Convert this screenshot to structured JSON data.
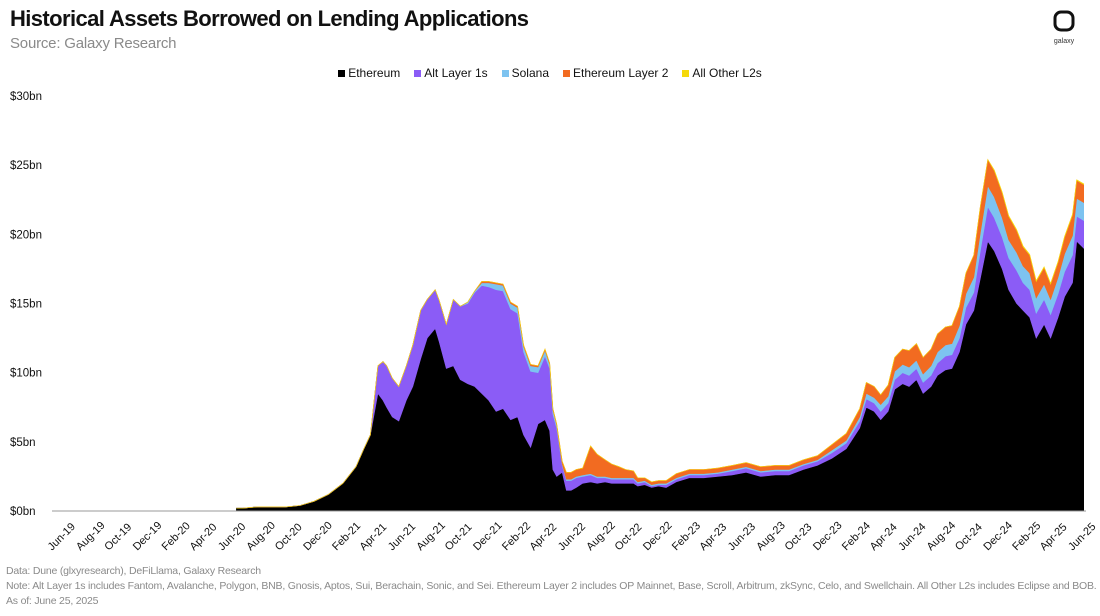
{
  "header": {
    "title": "Historical Assets Borrowed on Lending Applications",
    "subtitle": "Source: Galaxy Research",
    "logo_text": "galaxy"
  },
  "footer": {
    "data_line": "Data: Dune (glxyresearch), DeFiLlama, Galaxy Research",
    "note_line": "Note: Alt Layer 1s includes Fantom, Avalanche, Polygon, BNB, Gnosis, Aptos, Sui, Berachain, Sonic, and Sei. Ethereum Layer 2 includes OP Mainnet, Base, Scroll, Arbitrum, zkSync, Celo, and Swellchain. All Other L2s includes Eclipse and BOB.",
    "asof_line": "As of: June 25, 2025"
  },
  "chart_data": {
    "type": "area",
    "stacked": true,
    "legend_position": "top-center",
    "grid": false,
    "ylim": [
      0,
      30
    ],
    "y_ticks": [
      "$0bn",
      "$5bn",
      "$10bn",
      "$15bn",
      "$20bn",
      "$25bn",
      "$30bn"
    ],
    "x_ticks": [
      "Jun-19",
      "Aug-19",
      "Oct-19",
      "Dec-19",
      "Feb-20",
      "Apr-20",
      "Jun-20",
      "Aug-20",
      "Oct-20",
      "Dec-20",
      "Feb-21",
      "Apr-21",
      "Jun-21",
      "Aug-21",
      "Oct-21",
      "Dec-21",
      "Feb-22",
      "Apr-22",
      "Jun-22",
      "Aug-22",
      "Oct-22",
      "Dec-22",
      "Feb-23",
      "Apr-23",
      "Jun-23",
      "Aug-23",
      "Oct-23",
      "Dec-23",
      "Feb-24",
      "Apr-24",
      "Jun-24",
      "Aug-24",
      "Oct-24",
      "Dec-24",
      "Feb-25",
      "Apr-25",
      "Jun-25"
    ],
    "x_range": [
      "2019-06-01",
      "2025-06-30"
    ],
    "x": [
      "2020-07-01",
      "2020-07-15",
      "2020-08-15",
      "2020-09-15",
      "2020-10-15",
      "2020-11-15",
      "2020-12-15",
      "2021-01-15",
      "2021-02-15",
      "2021-03-15",
      "2021-04-01",
      "2021-04-15",
      "2021-05-01",
      "2021-05-12",
      "2021-05-20",
      "2021-06-01",
      "2021-06-15",
      "2021-07-01",
      "2021-07-15",
      "2021-08-01",
      "2021-08-15",
      "2021-09-01",
      "2021-09-10",
      "2021-09-25",
      "2021-10-10",
      "2021-10-25",
      "2021-11-10",
      "2021-11-25",
      "2021-12-10",
      "2021-12-25",
      "2022-01-10",
      "2022-01-25",
      "2022-02-10",
      "2022-02-25",
      "2022-03-10",
      "2022-03-25",
      "2022-04-10",
      "2022-04-25",
      "2022-05-05",
      "2022-05-12",
      "2022-05-20",
      "2022-06-01",
      "2022-06-10",
      "2022-06-20",
      "2022-07-01",
      "2022-07-15",
      "2022-08-01",
      "2022-08-15",
      "2022-09-01",
      "2022-09-15",
      "2022-10-01",
      "2022-10-15",
      "2022-11-01",
      "2022-11-10",
      "2022-11-25",
      "2022-12-10",
      "2022-12-25",
      "2023-01-10",
      "2023-02-01",
      "2023-03-01",
      "2023-04-01",
      "2023-05-01",
      "2023-06-01",
      "2023-07-01",
      "2023-08-01",
      "2023-09-01",
      "2023-10-01",
      "2023-11-01",
      "2023-12-01",
      "2024-01-01",
      "2024-02-01",
      "2024-03-01",
      "2024-03-15",
      "2024-04-01",
      "2024-04-15",
      "2024-05-01",
      "2024-05-15",
      "2024-06-01",
      "2024-06-15",
      "2024-07-01",
      "2024-07-15",
      "2024-08-01",
      "2024-08-15",
      "2024-09-01",
      "2024-09-15",
      "2024-10-01",
      "2024-10-15",
      "2024-11-01",
      "2024-11-15",
      "2024-12-01",
      "2024-12-15",
      "2025-01-01",
      "2025-01-15",
      "2025-02-01",
      "2025-02-15",
      "2025-03-01",
      "2025-03-15",
      "2025-04-01",
      "2025-04-15",
      "2025-05-01",
      "2025-05-15",
      "2025-06-01",
      "2025-06-10",
      "2025-06-25"
    ],
    "series": [
      {
        "name": "Ethereum",
        "color": "#000000",
        "values": [
          0.2,
          0.2,
          0.3,
          0.3,
          0.3,
          0.4,
          0.7,
          1.2,
          2.0,
          3.2,
          4.5,
          5.5,
          8.5,
          8.0,
          7.5,
          6.8,
          6.5,
          8.0,
          9.0,
          11.0,
          12.5,
          13.2,
          12.2,
          10.3,
          10.5,
          9.5,
          9.2,
          9.0,
          8.5,
          8.0,
          7.2,
          7.4,
          6.6,
          6.8,
          5.5,
          4.6,
          6.3,
          6.6,
          5.8,
          3.0,
          2.5,
          2.8,
          1.5,
          1.5,
          1.7,
          2.0,
          2.1,
          2.0,
          2.1,
          2.0,
          2.0,
          2.0,
          2.0,
          1.8,
          1.9,
          1.7,
          1.8,
          1.7,
          2.1,
          2.4,
          2.4,
          2.5,
          2.6,
          2.8,
          2.5,
          2.6,
          2.6,
          3.0,
          3.3,
          3.8,
          4.5,
          6.0,
          7.5,
          7.2,
          6.6,
          7.2,
          8.8,
          9.2,
          9.0,
          9.5,
          8.5,
          9.0,
          9.8,
          10.2,
          10.3,
          11.5,
          13.5,
          14.5,
          16.8,
          19.5,
          18.8,
          17.5,
          16.0,
          15.0,
          14.5,
          14.0,
          12.5,
          13.5,
          12.5,
          14.0,
          15.5,
          16.5,
          19.5,
          19.0
        ]
      },
      {
        "name": "Alt Layer 1s",
        "color": "#8b5cf6",
        "values": [
          0.0,
          0.0,
          0.0,
          0.0,
          0.0,
          0.0,
          0.0,
          0.0,
          0.0,
          0.0,
          0.0,
          0.0,
          2.0,
          2.8,
          3.0,
          2.8,
          2.5,
          2.5,
          3.0,
          3.5,
          2.8,
          2.8,
          3.0,
          3.2,
          4.8,
          5.3,
          5.8,
          6.8,
          7.8,
          8.2,
          8.8,
          8.5,
          8.0,
          7.5,
          6.0,
          5.5,
          3.7,
          4.6,
          4.5,
          4.0,
          3.5,
          0.5,
          0.7,
          0.7,
          0.7,
          0.5,
          0.5,
          0.4,
          0.3,
          0.3,
          0.3,
          0.3,
          0.3,
          0.2,
          0.2,
          0.1,
          0.1,
          0.2,
          0.2,
          0.2,
          0.2,
          0.2,
          0.3,
          0.3,
          0.3,
          0.3,
          0.3,
          0.3,
          0.3,
          0.4,
          0.4,
          0.5,
          0.6,
          0.6,
          0.6,
          0.6,
          0.7,
          0.8,
          0.8,
          0.8,
          0.8,
          0.8,
          0.9,
          1.0,
          1.0,
          1.0,
          1.2,
          1.3,
          2.0,
          2.5,
          2.4,
          2.3,
          2.3,
          2.4,
          2.0,
          2.0,
          1.8,
          1.8,
          1.7,
          1.7,
          1.8,
          2.0,
          1.8,
          2.0
        ]
      },
      {
        "name": "Solana",
        "color": "#7dc3f0",
        "values": [
          0.0,
          0.0,
          0.0,
          0.0,
          0.0,
          0.0,
          0.0,
          0.0,
          0.0,
          0.0,
          0.0,
          0.0,
          0.0,
          0.0,
          0.0,
          0.0,
          0.0,
          0.0,
          0.0,
          0.0,
          0.0,
          0.0,
          0.0,
          0.0,
          0.0,
          0.0,
          0.1,
          0.1,
          0.2,
          0.3,
          0.4,
          0.4,
          0.4,
          0.4,
          0.4,
          0.4,
          0.4,
          0.4,
          0.3,
          0.3,
          0.2,
          0.1,
          0.1,
          0.1,
          0.1,
          0.1,
          0.1,
          0.1,
          0.1,
          0.1,
          0.1,
          0.1,
          0.1,
          0.1,
          0.1,
          0.1,
          0.1,
          0.1,
          0.1,
          0.1,
          0.1,
          0.1,
          0.1,
          0.1,
          0.1,
          0.1,
          0.1,
          0.1,
          0.1,
          0.2,
          0.2,
          0.3,
          0.4,
          0.4,
          0.5,
          0.5,
          0.6,
          0.6,
          0.6,
          0.6,
          0.6,
          0.7,
          0.8,
          0.8,
          0.8,
          0.9,
          1.0,
          1.1,
          1.3,
          1.5,
          1.5,
          1.4,
          1.3,
          1.3,
          1.2,
          1.2,
          1.1,
          1.1,
          1.1,
          1.2,
          1.3,
          1.4,
          1.3,
          1.3
        ]
      },
      {
        "name": "Ethereum Layer 2",
        "color": "#f26b21",
        "values": [
          0.0,
          0.0,
          0.0,
          0.0,
          0.0,
          0.0,
          0.0,
          0.0,
          0.0,
          0.0,
          0.0,
          0.0,
          0.0,
          0.0,
          0.0,
          0.0,
          0.0,
          0.0,
          0.0,
          0.0,
          0.0,
          0.0,
          0.0,
          0.0,
          0.0,
          0.0,
          0.0,
          0.0,
          0.1,
          0.1,
          0.1,
          0.1,
          0.1,
          0.1,
          0.1,
          0.1,
          0.1,
          0.1,
          0.1,
          0.1,
          0.1,
          0.2,
          0.5,
          0.5,
          0.5,
          0.5,
          2.0,
          1.6,
          1.2,
          1.0,
          0.8,
          0.6,
          0.5,
          0.3,
          0.2,
          0.2,
          0.2,
          0.2,
          0.3,
          0.3,
          0.3,
          0.3,
          0.3,
          0.3,
          0.3,
          0.3,
          0.3,
          0.3,
          0.3,
          0.4,
          0.5,
          0.6,
          0.8,
          0.8,
          0.7,
          0.8,
          1.0,
          1.1,
          1.2,
          1.2,
          1.2,
          1.2,
          1.3,
          1.3,
          1.3,
          1.4,
          1.5,
          1.6,
          1.9,
          1.9,
          1.9,
          1.8,
          1.7,
          1.6,
          1.4,
          1.3,
          1.2,
          1.2,
          1.1,
          1.1,
          1.2,
          1.5,
          1.3,
          1.3
        ]
      },
      {
        "name": "All Other L2s",
        "color": "#f5d90a",
        "values": [
          0.0,
          0.0,
          0.0,
          0.0,
          0.0,
          0.0,
          0.0,
          0.0,
          0.0,
          0.0,
          0.0,
          0.0,
          0.0,
          0.0,
          0.0,
          0.0,
          0.0,
          0.0,
          0.0,
          0.0,
          0.0,
          0.0,
          0.0,
          0.0,
          0.0,
          0.0,
          0.0,
          0.0,
          0.0,
          0.0,
          0.0,
          0.0,
          0.0,
          0.0,
          0.0,
          0.0,
          0.0,
          0.0,
          0.0,
          0.0,
          0.0,
          0.0,
          0.0,
          0.0,
          0.0,
          0.0,
          0.0,
          0.0,
          0.0,
          0.0,
          0.0,
          0.0,
          0.0,
          0.0,
          0.0,
          0.0,
          0.0,
          0.0,
          0.0,
          0.0,
          0.0,
          0.0,
          0.0,
          0.0,
          0.0,
          0.0,
          0.0,
          0.0,
          0.0,
          0.0,
          0.0,
          0.0,
          0.0,
          0.0,
          0.0,
          0.0,
          0.0,
          0.0,
          0.0,
          0.0,
          0.0,
          0.0,
          0.0,
          0.0,
          0.0,
          0.0,
          0.0,
          0.0,
          0.0,
          0.0,
          0.05,
          0.05,
          0.05,
          0.05,
          0.05,
          0.05,
          0.05,
          0.05,
          0.05,
          0.05,
          0.05,
          0.05,
          0.05,
          0.05
        ]
      }
    ]
  }
}
